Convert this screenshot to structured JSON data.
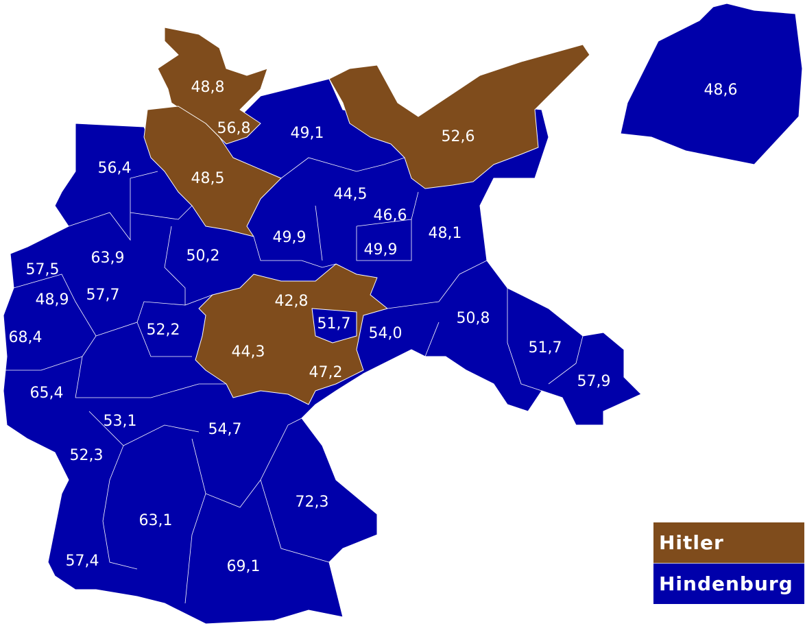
{
  "colors": {
    "hitler": "#7f4c1c",
    "hindenburg": "#0000aa",
    "border": "#ffffff"
  },
  "legend": [
    {
      "label": "Hitler",
      "color": "#7f4c1c"
    },
    {
      "label": "Hindenburg",
      "color": "#0000aa"
    }
  ],
  "regions": [
    {
      "value": "48,8",
      "winner": "hitler"
    },
    {
      "value": "56,8",
      "winner": "hitler"
    },
    {
      "value": "48,5",
      "winner": "hitler"
    },
    {
      "value": "49,1",
      "winner": "hindenburg"
    },
    {
      "value": "56,4",
      "winner": "hindenburg"
    },
    {
      "value": "44,5",
      "winner": "hindenburg"
    },
    {
      "value": "46,6",
      "winner": "hindenburg"
    },
    {
      "value": "48,1",
      "winner": "hindenburg"
    },
    {
      "value": "49,9",
      "winner": "hindenburg"
    },
    {
      "value": "49,9",
      "winner": "hindenburg"
    },
    {
      "value": "57,5",
      "winner": "hindenburg"
    },
    {
      "value": "63,9",
      "winner": "hindenburg"
    },
    {
      "value": "50,2",
      "winner": "hindenburg"
    },
    {
      "value": "48,9",
      "winner": "hindenburg"
    },
    {
      "value": "57,7",
      "winner": "hindenburg"
    },
    {
      "value": "42,8",
      "winner": "hitler"
    },
    {
      "value": "51,7",
      "winner": "hindenburg"
    },
    {
      "value": "54,0",
      "winner": "hindenburg"
    },
    {
      "value": "50,8",
      "winner": "hindenburg"
    },
    {
      "value": "51,7",
      "winner": "hindenburg"
    },
    {
      "value": "57,9",
      "winner": "hindenburg"
    },
    {
      "value": "68,4",
      "winner": "hindenburg"
    },
    {
      "value": "52,2",
      "winner": "hindenburg"
    },
    {
      "value": "44,3",
      "winner": "hitler"
    },
    {
      "value": "47,2",
      "winner": "hitler"
    },
    {
      "value": "65,4",
      "winner": "hindenburg"
    },
    {
      "value": "53,1",
      "winner": "hindenburg"
    },
    {
      "value": "54,7",
      "winner": "hindenburg"
    },
    {
      "value": "52,3",
      "winner": "hindenburg"
    },
    {
      "value": "72,3",
      "winner": "hindenburg"
    },
    {
      "value": "63,1",
      "winner": "hindenburg"
    },
    {
      "value": "57,4",
      "winner": "hindenburg"
    },
    {
      "value": "69,1",
      "winner": "hindenburg"
    },
    {
      "value": "48,6",
      "winner": "hindenburg"
    },
    {
      "value": "52,6",
      "winner": "hitler"
    }
  ]
}
